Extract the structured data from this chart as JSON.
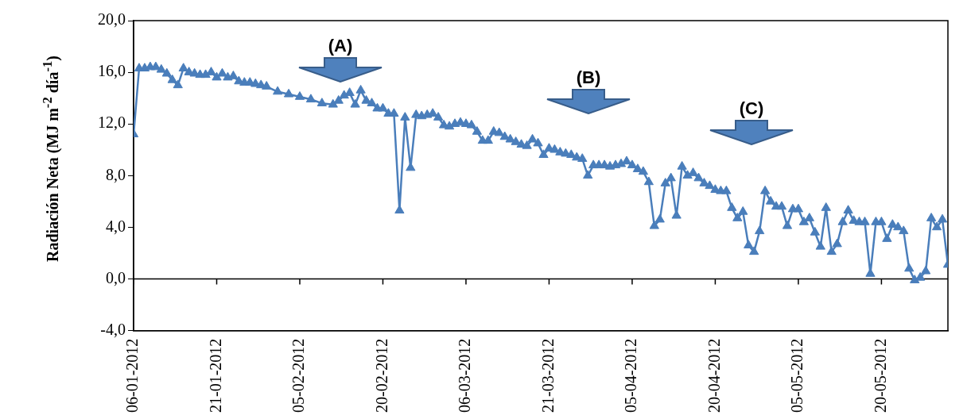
{
  "chart_data": {
    "type": "line",
    "ylabel": "Radiación Neta (MJ m$^{-2}$ día$^{-1}$)",
    "xlim": [
      "2012-01-06",
      "2012-06-01"
    ],
    "xticks": [
      {
        "value": "2012-01-06",
        "label": "06-01-2012"
      },
      {
        "value": "2012-01-21",
        "label": "21-01-2012"
      },
      {
        "value": "2012-02-05",
        "label": "05-02-2012"
      },
      {
        "value": "2012-02-20",
        "label": "20-02-2012"
      },
      {
        "value": "2012-03-06",
        "label": "06-03-2012"
      },
      {
        "value": "2012-03-21",
        "label": "21-03-2012"
      },
      {
        "value": "2012-04-05",
        "label": "05-04-2012"
      },
      {
        "value": "2012-04-20",
        "label": "20-04-2012"
      },
      {
        "value": "2012-05-05",
        "label": "05-05-2012"
      },
      {
        "value": "2012-05-20",
        "label": "20-05-2012"
      }
    ],
    "ylim": [
      -4,
      20
    ],
    "yticks": [
      {
        "value": -4,
        "label": "-4,0"
      },
      {
        "value": 0,
        "label": "0,0"
      },
      {
        "value": 4,
        "label": "4,0"
      },
      {
        "value": 8,
        "label": "8,0"
      },
      {
        "value": 12,
        "label": "12,0"
      },
      {
        "value": 16,
        "label": "16,0"
      },
      {
        "value": 20,
        "label": "20,0"
      }
    ],
    "grid": false,
    "legend": false,
    "marker": "triangle",
    "line_style": "solid",
    "ref_lines": [
      {
        "axis": "y",
        "value": 0,
        "color": "#000000"
      }
    ],
    "annotations": [
      "(A)",
      "(B)",
      "(C)"
    ],
    "x": [
      "2012-01-06",
      "2012-01-07",
      "2012-01-08",
      "2012-01-09",
      "2012-01-10",
      "2012-01-11",
      "2012-01-12",
      "2012-01-13",
      "2012-01-14",
      "2012-01-15",
      "2012-01-16",
      "2012-01-17",
      "2012-01-18",
      "2012-01-19",
      "2012-01-20",
      "2012-01-21",
      "2012-01-22",
      "2012-01-23",
      "2012-01-24",
      "2012-01-25",
      "2012-01-26",
      "2012-01-27",
      "2012-01-28",
      "2012-01-29",
      "2012-01-30",
      "2012-02-01",
      "2012-02-03",
      "2012-02-05",
      "2012-02-07",
      "2012-02-09",
      "2012-02-11",
      "2012-02-12",
      "2012-02-13",
      "2012-02-14",
      "2012-02-15",
      "2012-02-16",
      "2012-02-17",
      "2012-02-18",
      "2012-02-19",
      "2012-02-20",
      "2012-02-21",
      "2012-02-22",
      "2012-02-23",
      "2012-02-24",
      "2012-02-25",
      "2012-02-26",
      "2012-02-27",
      "2012-02-28",
      "2012-02-29",
      "2012-03-01",
      "2012-03-02",
      "2012-03-03",
      "2012-03-04",
      "2012-03-05",
      "2012-03-06",
      "2012-03-07",
      "2012-03-08",
      "2012-03-09",
      "2012-03-10",
      "2012-03-11",
      "2012-03-12",
      "2012-03-13",
      "2012-03-14",
      "2012-03-15",
      "2012-03-16",
      "2012-03-17",
      "2012-03-18",
      "2012-03-19",
      "2012-03-20",
      "2012-03-21",
      "2012-03-22",
      "2012-03-23",
      "2012-03-24",
      "2012-03-25",
      "2012-03-26",
      "2012-03-27",
      "2012-03-28",
      "2012-03-29",
      "2012-03-30",
      "2012-03-31",
      "2012-04-01",
      "2012-04-02",
      "2012-04-03",
      "2012-04-04",
      "2012-04-05",
      "2012-04-06",
      "2012-04-07",
      "2012-04-08",
      "2012-04-09",
      "2012-04-10",
      "2012-04-11",
      "2012-04-12",
      "2012-04-13",
      "2012-04-14",
      "2012-04-15",
      "2012-04-16",
      "2012-04-17",
      "2012-04-18",
      "2012-04-19",
      "2012-04-20",
      "2012-04-21",
      "2012-04-22",
      "2012-04-23",
      "2012-04-24",
      "2012-04-25",
      "2012-04-26",
      "2012-04-27",
      "2012-04-28",
      "2012-04-29",
      "2012-04-30",
      "2012-05-01",
      "2012-05-02",
      "2012-05-03",
      "2012-05-04",
      "2012-05-05",
      "2012-05-06",
      "2012-05-07",
      "2012-05-08",
      "2012-05-09",
      "2012-05-10",
      "2012-05-11",
      "2012-05-12",
      "2012-05-13",
      "2012-05-14",
      "2012-05-15",
      "2012-05-16",
      "2012-05-17",
      "2012-05-18",
      "2012-05-19",
      "2012-05-20",
      "2012-05-21",
      "2012-05-22",
      "2012-05-23",
      "2012-05-24",
      "2012-05-25",
      "2012-05-26",
      "2012-05-27",
      "2012-05-28",
      "2012-05-29",
      "2012-05-30",
      "2012-05-31",
      "2012-06-01"
    ],
    "series": [
      {
        "color": "#4a7ebb",
        "values": [
          11.2,
          16.3,
          16.3,
          16.4,
          16.4,
          16.2,
          15.9,
          15.4,
          15.0,
          16.3,
          16.0,
          15.9,
          15.8,
          15.8,
          16.0,
          15.6,
          15.9,
          15.6,
          15.7,
          15.3,
          15.2,
          15.2,
          15.1,
          15.0,
          14.9,
          14.5,
          14.3,
          14.1,
          13.9,
          13.6,
          13.5,
          13.8,
          14.2,
          14.4,
          13.5,
          14.6,
          13.8,
          13.6,
          13.2,
          13.2,
          12.8,
          12.8,
          5.3,
          12.5,
          8.6,
          12.7,
          12.6,
          12.7,
          12.8,
          12.5,
          11.9,
          11.8,
          12.0,
          12.1,
          12.0,
          11.9,
          11.4,
          10.7,
          10.7,
          11.4,
          11.3,
          11.0,
          10.8,
          10.6,
          10.4,
          10.3,
          10.8,
          10.5,
          9.6,
          10.1,
          10.0,
          9.8,
          9.7,
          9.6,
          9.4,
          9.3,
          8.0,
          8.8,
          8.8,
          8.8,
          8.7,
          8.8,
          8.9,
          9.1,
          8.8,
          8.5,
          8.3,
          7.5,
          4.1,
          4.6,
          7.4,
          7.8,
          4.9,
          8.7,
          8.0,
          8.2,
          7.8,
          7.4,
          7.2,
          6.9,
          6.8,
          6.8,
          5.5,
          4.7,
          5.2,
          2.6,
          2.1,
          3.7,
          6.8,
          6.0,
          5.6,
          5.6,
          4.1,
          5.4,
          5.4,
          4.4,
          4.7,
          3.6,
          2.5,
          5.5,
          2.1,
          2.7,
          4.4,
          5.3,
          4.5,
          4.4,
          4.4,
          0.4,
          4.4,
          4.4,
          3.1,
          4.2,
          4.0,
          3.7,
          0.8,
          -0.1,
          0.1,
          0.6,
          4.7,
          4.0,
          4.6,
          1.1
        ]
      }
    ]
  }
}
